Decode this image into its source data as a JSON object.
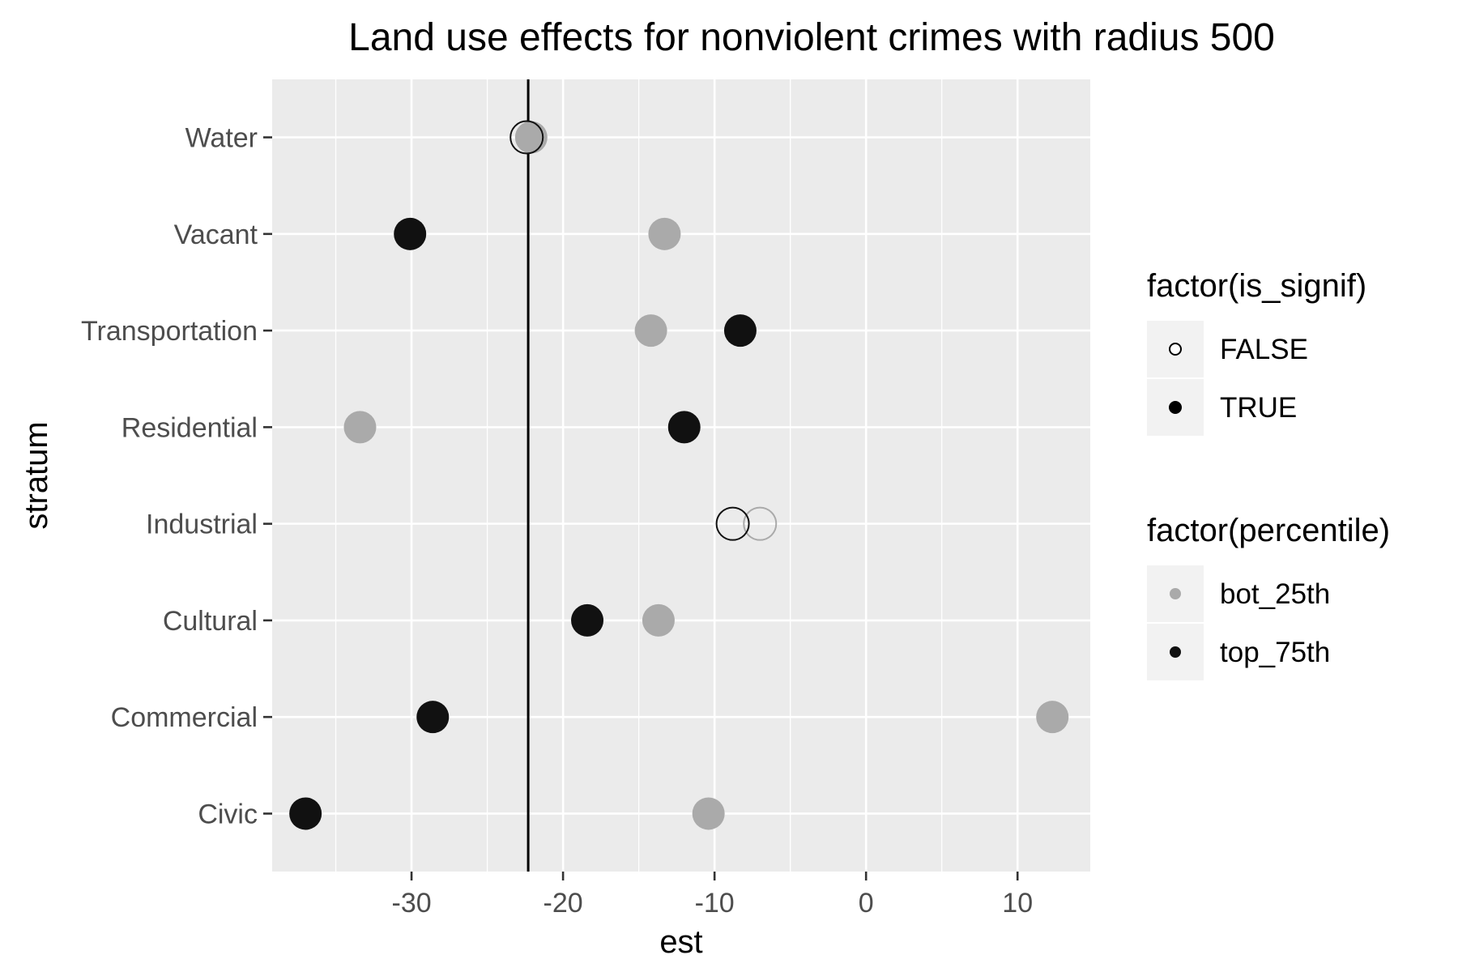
{
  "chart_data": {
    "type": "scatter",
    "title": "Land use effects for nonviolent crimes with radius 500",
    "xlabel": "est",
    "ylabel": "stratum",
    "categories": [
      "Civic",
      "Commercial",
      "Cultural",
      "Industrial",
      "Residential",
      "Transportation",
      "Vacant",
      "Water"
    ],
    "xlim": [
      -39.2,
      14.8
    ],
    "x_ticks": [
      -30,
      -20,
      -10,
      0,
      10
    ],
    "x_tick_labels": [
      "-30",
      "-20",
      "-10",
      "0",
      "10"
    ],
    "reference_line": {
      "x": -22.3
    },
    "grid": true,
    "legend_position": "right",
    "points": [
      {
        "stratum": "Water",
        "percentile": "bot_25th",
        "is_signif": "TRUE",
        "est": -22.1
      },
      {
        "stratum": "Water",
        "percentile": "top_75th",
        "is_signif": "FALSE",
        "est": -22.4
      },
      {
        "stratum": "Vacant",
        "percentile": "bot_25th",
        "is_signif": "TRUE",
        "est": -13.3
      },
      {
        "stratum": "Vacant",
        "percentile": "top_75th",
        "is_signif": "TRUE",
        "est": -30.1
      },
      {
        "stratum": "Transportation",
        "percentile": "bot_25th",
        "is_signif": "TRUE",
        "est": -14.2
      },
      {
        "stratum": "Transportation",
        "percentile": "top_75th",
        "is_signif": "TRUE",
        "est": -8.3
      },
      {
        "stratum": "Residential",
        "percentile": "bot_25th",
        "is_signif": "TRUE",
        "est": -33.4
      },
      {
        "stratum": "Residential",
        "percentile": "top_75th",
        "is_signif": "TRUE",
        "est": -12.0
      },
      {
        "stratum": "Industrial",
        "percentile": "bot_25th",
        "is_signif": "FALSE",
        "est": -7.0
      },
      {
        "stratum": "Industrial",
        "percentile": "top_75th",
        "is_signif": "FALSE",
        "est": -8.8
      },
      {
        "stratum": "Cultural",
        "percentile": "bot_25th",
        "is_signif": "TRUE",
        "est": -13.7
      },
      {
        "stratum": "Cultural",
        "percentile": "top_75th",
        "is_signif": "TRUE",
        "est": -18.4
      },
      {
        "stratum": "Commercial",
        "percentile": "bot_25th",
        "is_signif": "TRUE",
        "est": 12.3
      },
      {
        "stratum": "Commercial",
        "percentile": "top_75th",
        "is_signif": "TRUE",
        "est": -28.6
      },
      {
        "stratum": "Civic",
        "percentile": "bot_25th",
        "is_signif": "TRUE",
        "est": -10.4
      },
      {
        "stratum": "Civic",
        "percentile": "top_75th",
        "is_signif": "TRUE",
        "est": -37.0
      }
    ],
    "legends": [
      {
        "title": "factor(is_signif)",
        "kind": "fill",
        "entries": [
          {
            "label": "FALSE",
            "filled": false
          },
          {
            "label": "TRUE",
            "filled": true
          }
        ]
      },
      {
        "title": "factor(percentile)",
        "kind": "color",
        "entries": [
          {
            "label": "bot_25th",
            "color": "#aaaaaa"
          },
          {
            "label": "top_75th",
            "color": "#111111"
          }
        ]
      }
    ],
    "colors": {
      "bot_25th": "#aaaaaa",
      "top_75th": "#111111",
      "panel": "#ebebeb",
      "grid": "#ffffff",
      "reference_line": "#000000"
    }
  }
}
